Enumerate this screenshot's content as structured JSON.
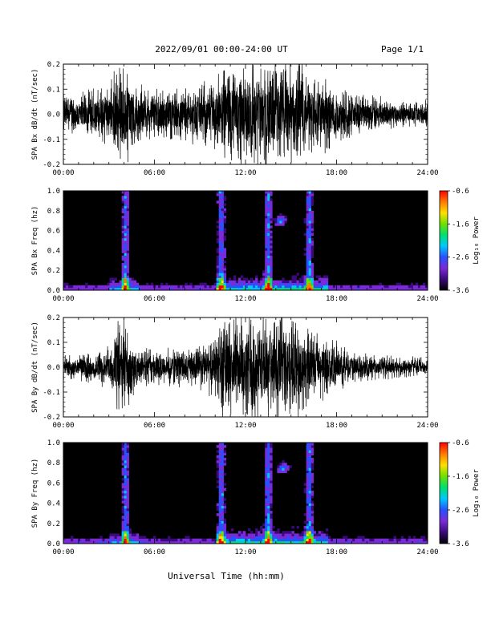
{
  "header": {
    "date_range": "2022/09/01  00:00-24:00 UT",
    "page": "Page 1/1"
  },
  "xlabel": "Universal Time (hh:mm)",
  "colors": {
    "colorbar": [
      "#000000",
      "#3a0a7a",
      "#7a2ad6",
      "#2850ff",
      "#00c8ff",
      "#00e070",
      "#6ee000",
      "#ffe000",
      "#ff7a00",
      "#ff0000"
    ]
  },
  "chart_data": [
    {
      "type": "line",
      "ylabel": "SPA Bx dB/dt (nT/sec)",
      "xlim": [
        0,
        24
      ],
      "ylim": [
        -0.2,
        0.2
      ],
      "x_ticks": [
        "00:00",
        "06:00",
        "12:00",
        "18:00",
        "24:00"
      ],
      "y_ticks": [
        "0.2",
        "0.1",
        "0.0",
        "-0.1",
        "-0.2"
      ],
      "series": [
        {
          "x": [
            0,
            1,
            2,
            3,
            3.7,
            4.2,
            4.8,
            6,
            7,
            8,
            9,
            10,
            10.5,
            11,
            12,
            13,
            14,
            15,
            15.5,
            16,
            17,
            18,
            19,
            20,
            21,
            22,
            23,
            24
          ],
          "amplitude": [
            0.08,
            0.08,
            0.1,
            0.11,
            0.2,
            0.2,
            0.11,
            0.1,
            0.1,
            0.11,
            0.12,
            0.13,
            0.2,
            0.2,
            0.2,
            0.2,
            0.2,
            0.2,
            0.2,
            0.18,
            0.15,
            0.12,
            0.09,
            0.07,
            0.07,
            0.05,
            0.05,
            0.05
          ]
        }
      ]
    },
    {
      "type": "heatmap",
      "ylabel": "SPA Bx Freq (hz)",
      "xlim": [
        0,
        24
      ],
      "ylim": [
        0.0,
        1.0
      ],
      "x_ticks": [
        "00:00",
        "06:00",
        "12:00",
        "18:00",
        "24:00"
      ],
      "y_ticks": [
        "1.0",
        "0.8",
        "0.6",
        "0.4",
        "0.2",
        "0.0"
      ],
      "colorbar_label": "Log₁₀ Power",
      "colorbar_ticks": [
        "-0.6",
        "-1.6",
        "-2.6",
        "-3.6"
      ],
      "colorbar_range": [
        -3.6,
        -0.6
      ],
      "bright_columns": [
        4.1,
        10.4,
        13.5,
        16.2
      ],
      "bright_blob": {
        "x": 14.3,
        "y": 0.7
      }
    },
    {
      "type": "line",
      "ylabel": "SPA By dB/dt (nT/sec)",
      "xlim": [
        0,
        24
      ],
      "ylim": [
        -0.2,
        0.2
      ],
      "x_ticks": [
        "00:00",
        "06:00",
        "12:00",
        "18:00",
        "24:00"
      ],
      "y_ticks": [
        "0.2",
        "0.1",
        "0.0",
        "-0.1",
        "-0.2"
      ],
      "series": [
        {
          "x": [
            0,
            1,
            2,
            3,
            3.7,
            4.2,
            4.8,
            6,
            7,
            8,
            9,
            10,
            10.5,
            11,
            12,
            13,
            14,
            15,
            15.5,
            16,
            17,
            18,
            19,
            20,
            21,
            22,
            23,
            24
          ],
          "amplitude": [
            0.05,
            0.05,
            0.06,
            0.08,
            0.2,
            0.2,
            0.08,
            0.07,
            0.07,
            0.08,
            0.09,
            0.11,
            0.2,
            0.2,
            0.2,
            0.2,
            0.2,
            0.2,
            0.18,
            0.16,
            0.13,
            0.1,
            0.07,
            0.05,
            0.05,
            0.04,
            0.04,
            0.04
          ]
        }
      ]
    },
    {
      "type": "heatmap",
      "ylabel": "SPA By Freq (hz)",
      "xlim": [
        0,
        24
      ],
      "ylim": [
        0.0,
        1.0
      ],
      "x_ticks": [
        "00:00",
        "06:00",
        "12:00",
        "18:00",
        "24:00"
      ],
      "y_ticks": [
        "1.0",
        "0.8",
        "0.6",
        "0.4",
        "0.2",
        "0.0"
      ],
      "colorbar_label": "Log₁₀ Power",
      "colorbar_ticks": [
        "-0.6",
        "-1.6",
        "-2.6",
        "-3.6"
      ],
      "colorbar_range": [
        -3.6,
        -0.6
      ],
      "bright_columns": [
        4.1,
        10.4,
        13.5,
        16.2
      ],
      "bright_blob": {
        "x": 14.5,
        "y": 0.75
      }
    }
  ]
}
